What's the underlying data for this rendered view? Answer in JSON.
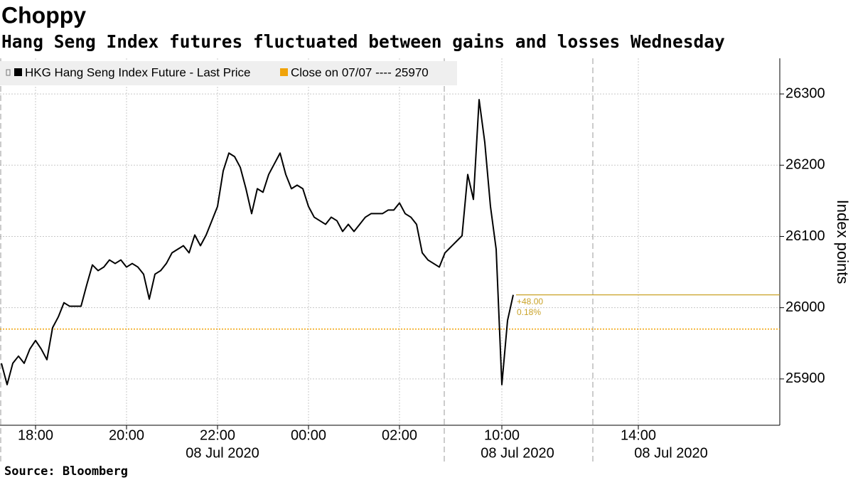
{
  "chart_data": {
    "type": "line",
    "title": "Choppy",
    "subtitle": "Hang Seng Index futures fluctuated between gains and losses Wednesday",
    "y_axis_label": "Index points",
    "source": "Source: Bloomberg",
    "categories": [
      null,
      null,
      null,
      null,
      null,
      null,
      "18:00",
      null,
      null,
      null,
      null,
      null,
      null,
      null,
      null,
      null,
      null,
      null,
      null,
      null,
      null,
      null,
      "20:00",
      null,
      null,
      null,
      null,
      null,
      null,
      null,
      null,
      null,
      null,
      null,
      null,
      null,
      null,
      null,
      "22:00",
      null,
      null,
      null,
      null,
      null,
      null,
      null,
      null,
      null,
      null,
      null,
      null,
      null,
      null,
      null,
      "00:00",
      null,
      null,
      null,
      null,
      null,
      null,
      null,
      null,
      null,
      null,
      null,
      null,
      null,
      null,
      null,
      "02:00",
      null,
      null,
      null,
      null,
      null,
      null,
      null,
      null,
      null,
      null,
      null,
      null,
      null,
      null,
      null,
      null,
      null,
      "10:00",
      null,
      null,
      null,
      null,
      null,
      null,
      null,
      null,
      null,
      null,
      null,
      null,
      null,
      null,
      null,
      null,
      null,
      null,
      null,
      null,
      null,
      null,
      null,
      "14:00"
    ],
    "x_group_labels": [
      "08 Jul 2020",
      "08 Jul 2020",
      "08 Jul 2020"
    ],
    "series": [
      {
        "name": "HKG Hang Seng Index Future - Last Price",
        "color": "#000000",
        "values": [
          25922,
          25892,
          25922,
          25932,
          25922,
          25942,
          25954,
          25942,
          25927,
          25972,
          25987,
          26007,
          26002,
          26002,
          26002,
          26032,
          26060,
          26052,
          26057,
          26067,
          26062,
          26067,
          26057,
          26062,
          26057,
          26047,
          26012,
          26047,
          26052,
          26062,
          26077,
          26082,
          26087,
          26077,
          26102,
          26087,
          26102,
          26122,
          26142,
          26192,
          26217,
          26212,
          26197,
          26167,
          26132,
          26167,
          26162,
          26187,
          26202,
          26217,
          26187,
          26167,
          26172,
          26167,
          26142,
          26127,
          26122,
          26117,
          26127,
          26122,
          26107,
          26117,
          26107,
          26117,
          26127,
          26132,
          26132,
          26132,
          26137,
          26137,
          26147,
          26132,
          26127,
          26117,
          26077,
          26067,
          26062,
          26057,
          26077,
          26085,
          26093,
          26101,
          26187,
          26152,
          26292,
          26232,
          26142,
          26082,
          25892,
          25982,
          26018,
          null,
          null,
          null,
          null,
          null,
          null,
          null,
          null,
          null,
          null,
          null,
          null,
          null,
          null,
          null,
          null,
          null,
          null,
          null,
          null,
          null,
          null
        ]
      }
    ],
    "reference_line": {
      "name": "Close on 07/07 ---- 25970",
      "color": "#f0a30a",
      "value": 25970
    },
    "last_price": {
      "value": 26018,
      "color": "#c9a227",
      "labels": [
        "+48.00",
        "0.18%"
      ]
    },
    "ylim": [
      25835,
      26350
    ],
    "yticks": [
      25900,
      26000,
      26100,
      26200,
      26300
    ],
    "grid": true,
    "legend": "top-left"
  }
}
